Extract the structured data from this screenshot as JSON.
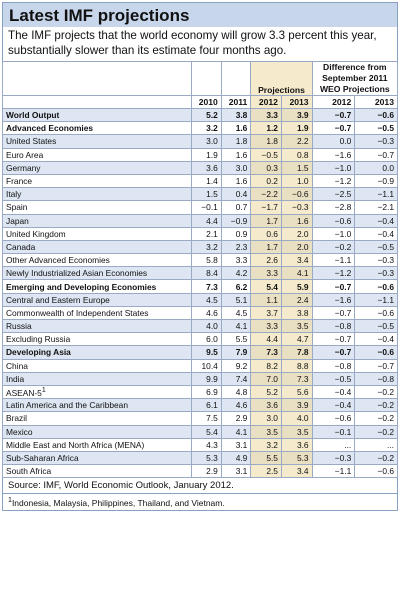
{
  "title": "Latest IMF projections",
  "intro": "The IMF projects that the world economy will grow 3.3 percent this year, substantially slower than its estimate four months ago.",
  "headers": {
    "projections": "Projections",
    "difference": "Difference from September 2011 WEO Projections",
    "years": [
      "2010",
      "2011",
      "2012",
      "2013",
      "2012",
      "2013"
    ]
  },
  "rows": [
    {
      "name": "World Output",
      "bold": true,
      "shade": true,
      "v": [
        "5.2",
        "3.8",
        "3.3",
        "3.9",
        "−0.7",
        "−0.6"
      ]
    },
    {
      "name": "Advanced Economies",
      "bold": true,
      "shade": false,
      "v": [
        "3.2",
        "1.6",
        "1.2",
        "1.9",
        "−0.7",
        "−0.5"
      ]
    },
    {
      "name": "United States",
      "bold": false,
      "shade": true,
      "v": [
        "3.0",
        "1.8",
        "1.8",
        "2.2",
        "0.0",
        "−0.3"
      ]
    },
    {
      "name": "Euro Area",
      "bold": false,
      "shade": false,
      "v": [
        "1.9",
        "1.6",
        "−0.5",
        "0.8",
        "−1.6",
        "−0.7"
      ]
    },
    {
      "name": "Germany",
      "bold": false,
      "shade": true,
      "v": [
        "3.6",
        "3.0",
        "0.3",
        "1.5",
        "−1.0",
        "0.0"
      ]
    },
    {
      "name": "France",
      "bold": false,
      "shade": false,
      "v": [
        "1.4",
        "1.6",
        "0.2",
        "1.0",
        "−1.2",
        "−0.9"
      ]
    },
    {
      "name": "Italy",
      "bold": false,
      "shade": true,
      "v": [
        "1.5",
        "0.4",
        "−2.2",
        "−0.6",
        "−2.5",
        "−1.1"
      ]
    },
    {
      "name": "Spain",
      "bold": false,
      "shade": false,
      "v": [
        "−0.1",
        "0.7",
        "−1.7",
        "−0.3",
        "−2.8",
        "−2.1"
      ]
    },
    {
      "name": "Japan",
      "bold": false,
      "shade": true,
      "v": [
        "4.4",
        "−0.9",
        "1.7",
        "1.6",
        "−0.6",
        "−0.4"
      ]
    },
    {
      "name": "United Kingdom",
      "bold": false,
      "shade": false,
      "v": [
        "2.1",
        "0.9",
        "0.6",
        "2.0",
        "−1.0",
        "−0.4"
      ]
    },
    {
      "name": "Canada",
      "bold": false,
      "shade": true,
      "v": [
        "3.2",
        "2.3",
        "1.7",
        "2.0",
        "−0.2",
        "−0.5"
      ]
    },
    {
      "name": "Other Advanced Economies",
      "bold": false,
      "shade": false,
      "v": [
        "5.8",
        "3.3",
        "2.6",
        "3.4",
        "−1.1",
        "−0.3"
      ]
    },
    {
      "name": "Newly Industrialized Asian Economies",
      "bold": false,
      "shade": true,
      "v": [
        "8.4",
        "4.2",
        "3.3",
        "4.1",
        "−1.2",
        "−0.3"
      ]
    },
    {
      "name": "Emerging and Developing Economies",
      "bold": true,
      "shade": false,
      "v": [
        "7.3",
        "6.2",
        "5.4",
        "5.9",
        "−0.7",
        "−0.6"
      ]
    },
    {
      "name": "Central and Eastern Europe",
      "bold": false,
      "shade": true,
      "v": [
        "4.5",
        "5.1",
        "1.1",
        "2.4",
        "−1.6",
        "−1.1"
      ]
    },
    {
      "name": "Commonwealth of Independent States",
      "bold": false,
      "shade": false,
      "v": [
        "4.6",
        "4.5",
        "3.7",
        "3.8",
        "−0.7",
        "−0.6"
      ]
    },
    {
      "name": "Russia",
      "bold": false,
      "shade": true,
      "v": [
        "4.0",
        "4.1",
        "3.3",
        "3.5",
        "−0.8",
        "−0.5"
      ]
    },
    {
      "name": "Excluding Russia",
      "bold": false,
      "shade": false,
      "v": [
        "6.0",
        "5.5",
        "4.4",
        "4.7",
        "−0.7",
        "−0.4"
      ]
    },
    {
      "name": "Developing Asia",
      "bold": true,
      "shade": true,
      "v": [
        "9.5",
        "7.9",
        "7.3",
        "7.8",
        "−0.7",
        "−0.6"
      ]
    },
    {
      "name": "China",
      "bold": false,
      "shade": false,
      "v": [
        "10.4",
        "9.2",
        "8.2",
        "8.8",
        "−0.8",
        "−0.7"
      ]
    },
    {
      "name": "India",
      "bold": false,
      "shade": true,
      "v": [
        "9.9",
        "7.4",
        "7.0",
        "7.3",
        "−0.5",
        "−0.8"
      ]
    },
    {
      "name": "ASEAN-5",
      "sup": "1",
      "bold": false,
      "shade": false,
      "v": [
        "6.9",
        "4.8",
        "5.2",
        "5.6",
        "−0.4",
        "−0.2"
      ]
    },
    {
      "name": "Latin America and the Caribbean",
      "bold": false,
      "shade": true,
      "v": [
        "6.1",
        "4.6",
        "3.6",
        "3.9",
        "−0.4",
        "−0.2"
      ]
    },
    {
      "name": "Brazil",
      "bold": false,
      "shade": false,
      "v": [
        "7.5",
        "2.9",
        "3.0",
        "4.0",
        "−0.6",
        "−0.2"
      ]
    },
    {
      "name": "Mexico",
      "bold": false,
      "shade": true,
      "v": [
        "5.4",
        "4.1",
        "3.5",
        "3.5",
        "−0.1",
        "−0.2"
      ]
    },
    {
      "name": "Middle East and North Africa (MENA)",
      "bold": false,
      "shade": false,
      "v": [
        "4.3",
        "3.1",
        "3.2",
        "3.6",
        "...",
        "..."
      ]
    },
    {
      "name": "Sub-Saharan Africa",
      "bold": false,
      "shade": true,
      "v": [
        "5.3",
        "4.9",
        "5.5",
        "5.3",
        "−0.3",
        "−0.2"
      ]
    },
    {
      "name": "South Africa",
      "bold": false,
      "shade": false,
      "v": [
        "2.9",
        "3.1",
        "2.5",
        "3.4",
        "−1.1",
        "−0.6"
      ]
    }
  ],
  "source": "Source: IMF, World Economic Outlook, January 2012.",
  "footnote_mark": "1",
  "footnote": "Indonesia, Malaysia, Philippines, Thailand, and Vietnam."
}
